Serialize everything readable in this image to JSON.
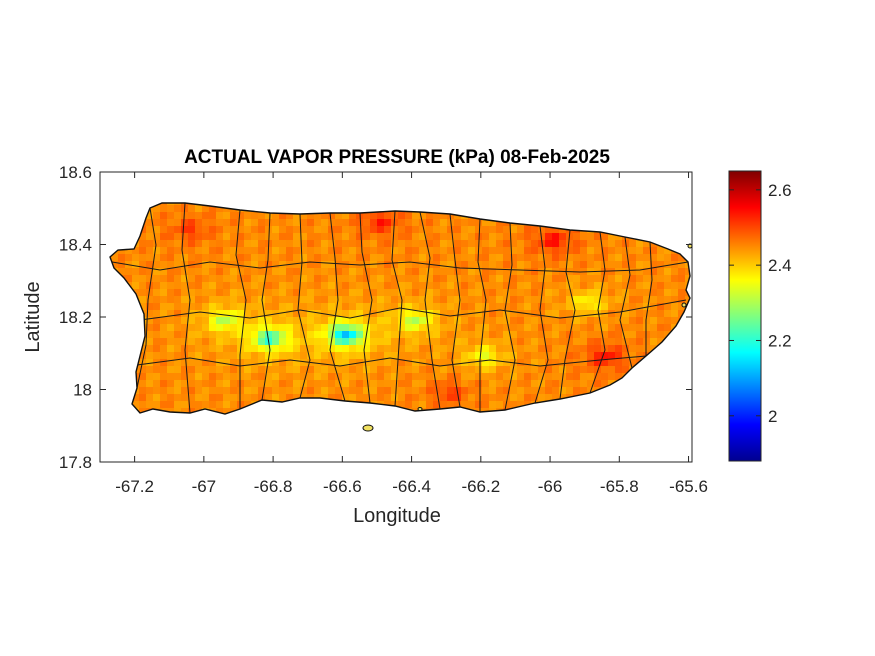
{
  "chart_data": {
    "type": "heatmap",
    "title": "ACTUAL VAPOR PRESSURE (kPa) 08-Feb-2025",
    "xlabel": "Longitude",
    "ylabel": "Latitude",
    "xlim": [
      -67.3,
      -65.59
    ],
    "ylim": [
      17.8,
      18.6
    ],
    "x_ticks": [
      "-67.2",
      "-67",
      "-66.8",
      "-66.6",
      "-66.4",
      "-66.2",
      "-66",
      "-65.8",
      "-65.6"
    ],
    "x_tick_values": [
      -67.2,
      -67.0,
      -66.8,
      -66.6,
      -66.4,
      -66.2,
      -66.0,
      -65.8,
      -65.6
    ],
    "y_ticks": [
      "17.8",
      "18",
      "18.2",
      "18.4",
      "18.6"
    ],
    "y_tick_values": [
      17.8,
      18.0,
      18.2,
      18.4,
      18.6
    ],
    "colorbar": {
      "colormap": "jet",
      "range": [
        1.88,
        2.65
      ],
      "ticks": [
        "2",
        "2.2",
        "2.4",
        "2.6"
      ],
      "tick_values": [
        2.0,
        2.2,
        2.4,
        2.6
      ]
    },
    "field": {
      "base": 2.45,
      "features": [
        {
          "lon": -66.6,
          "lat": 18.16,
          "value": 1.92
        },
        {
          "lon": -66.82,
          "lat": 18.15,
          "value": 2.05
        },
        {
          "lon": -66.95,
          "lat": 18.2,
          "value": 2.22
        },
        {
          "lon": -66.4,
          "lat": 18.2,
          "value": 2.22
        },
        {
          "lon": -66.2,
          "lat": 18.1,
          "value": 2.28
        },
        {
          "lon": -65.9,
          "lat": 18.25,
          "value": 2.3
        },
        {
          "lon": -66.0,
          "lat": 18.42,
          "value": 2.6
        },
        {
          "lon": -65.85,
          "lat": 18.1,
          "value": 2.6
        },
        {
          "lon": -66.5,
          "lat": 18.47,
          "value": 2.58
        },
        {
          "lon": -67.05,
          "lat": 18.45,
          "value": 2.55
        },
        {
          "lon": -66.3,
          "lat": 18.0,
          "value": 2.55
        }
      ]
    },
    "grid": false
  }
}
